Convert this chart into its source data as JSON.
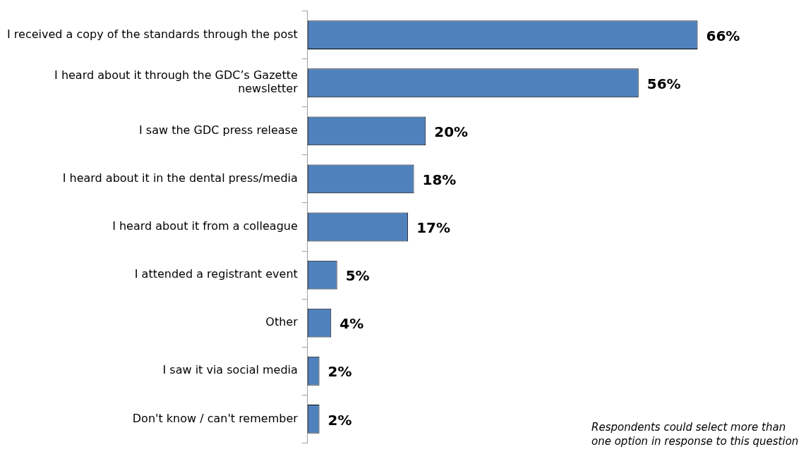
{
  "chart_data": {
    "type": "bar",
    "orientation": "horizontal",
    "categories": [
      "I received a copy of the standards through the post",
      "I heard about it through the GDC’s Gazette newsletter",
      "I saw the GDC press release",
      "I heard about it in the dental press/media",
      "I heard about it from a colleague",
      "I attended a registrant event",
      "Other",
      "I saw it via social media",
      "Don't know / can't remember"
    ],
    "values": [
      66,
      56,
      20,
      18,
      17,
      5,
      4,
      2,
      2
    ],
    "color": "#4f81bd",
    "data_labels": true,
    "value_labels": [
      "66%",
      "56%",
      "20%",
      "18%",
      "17%",
      "5%",
      "4%",
      "2%",
      "2%"
    ],
    "tick_labels": "y",
    "grid": false,
    "legend": false,
    "annotations": [
      "Respondents could select more than one option in response to this question"
    ]
  }
}
